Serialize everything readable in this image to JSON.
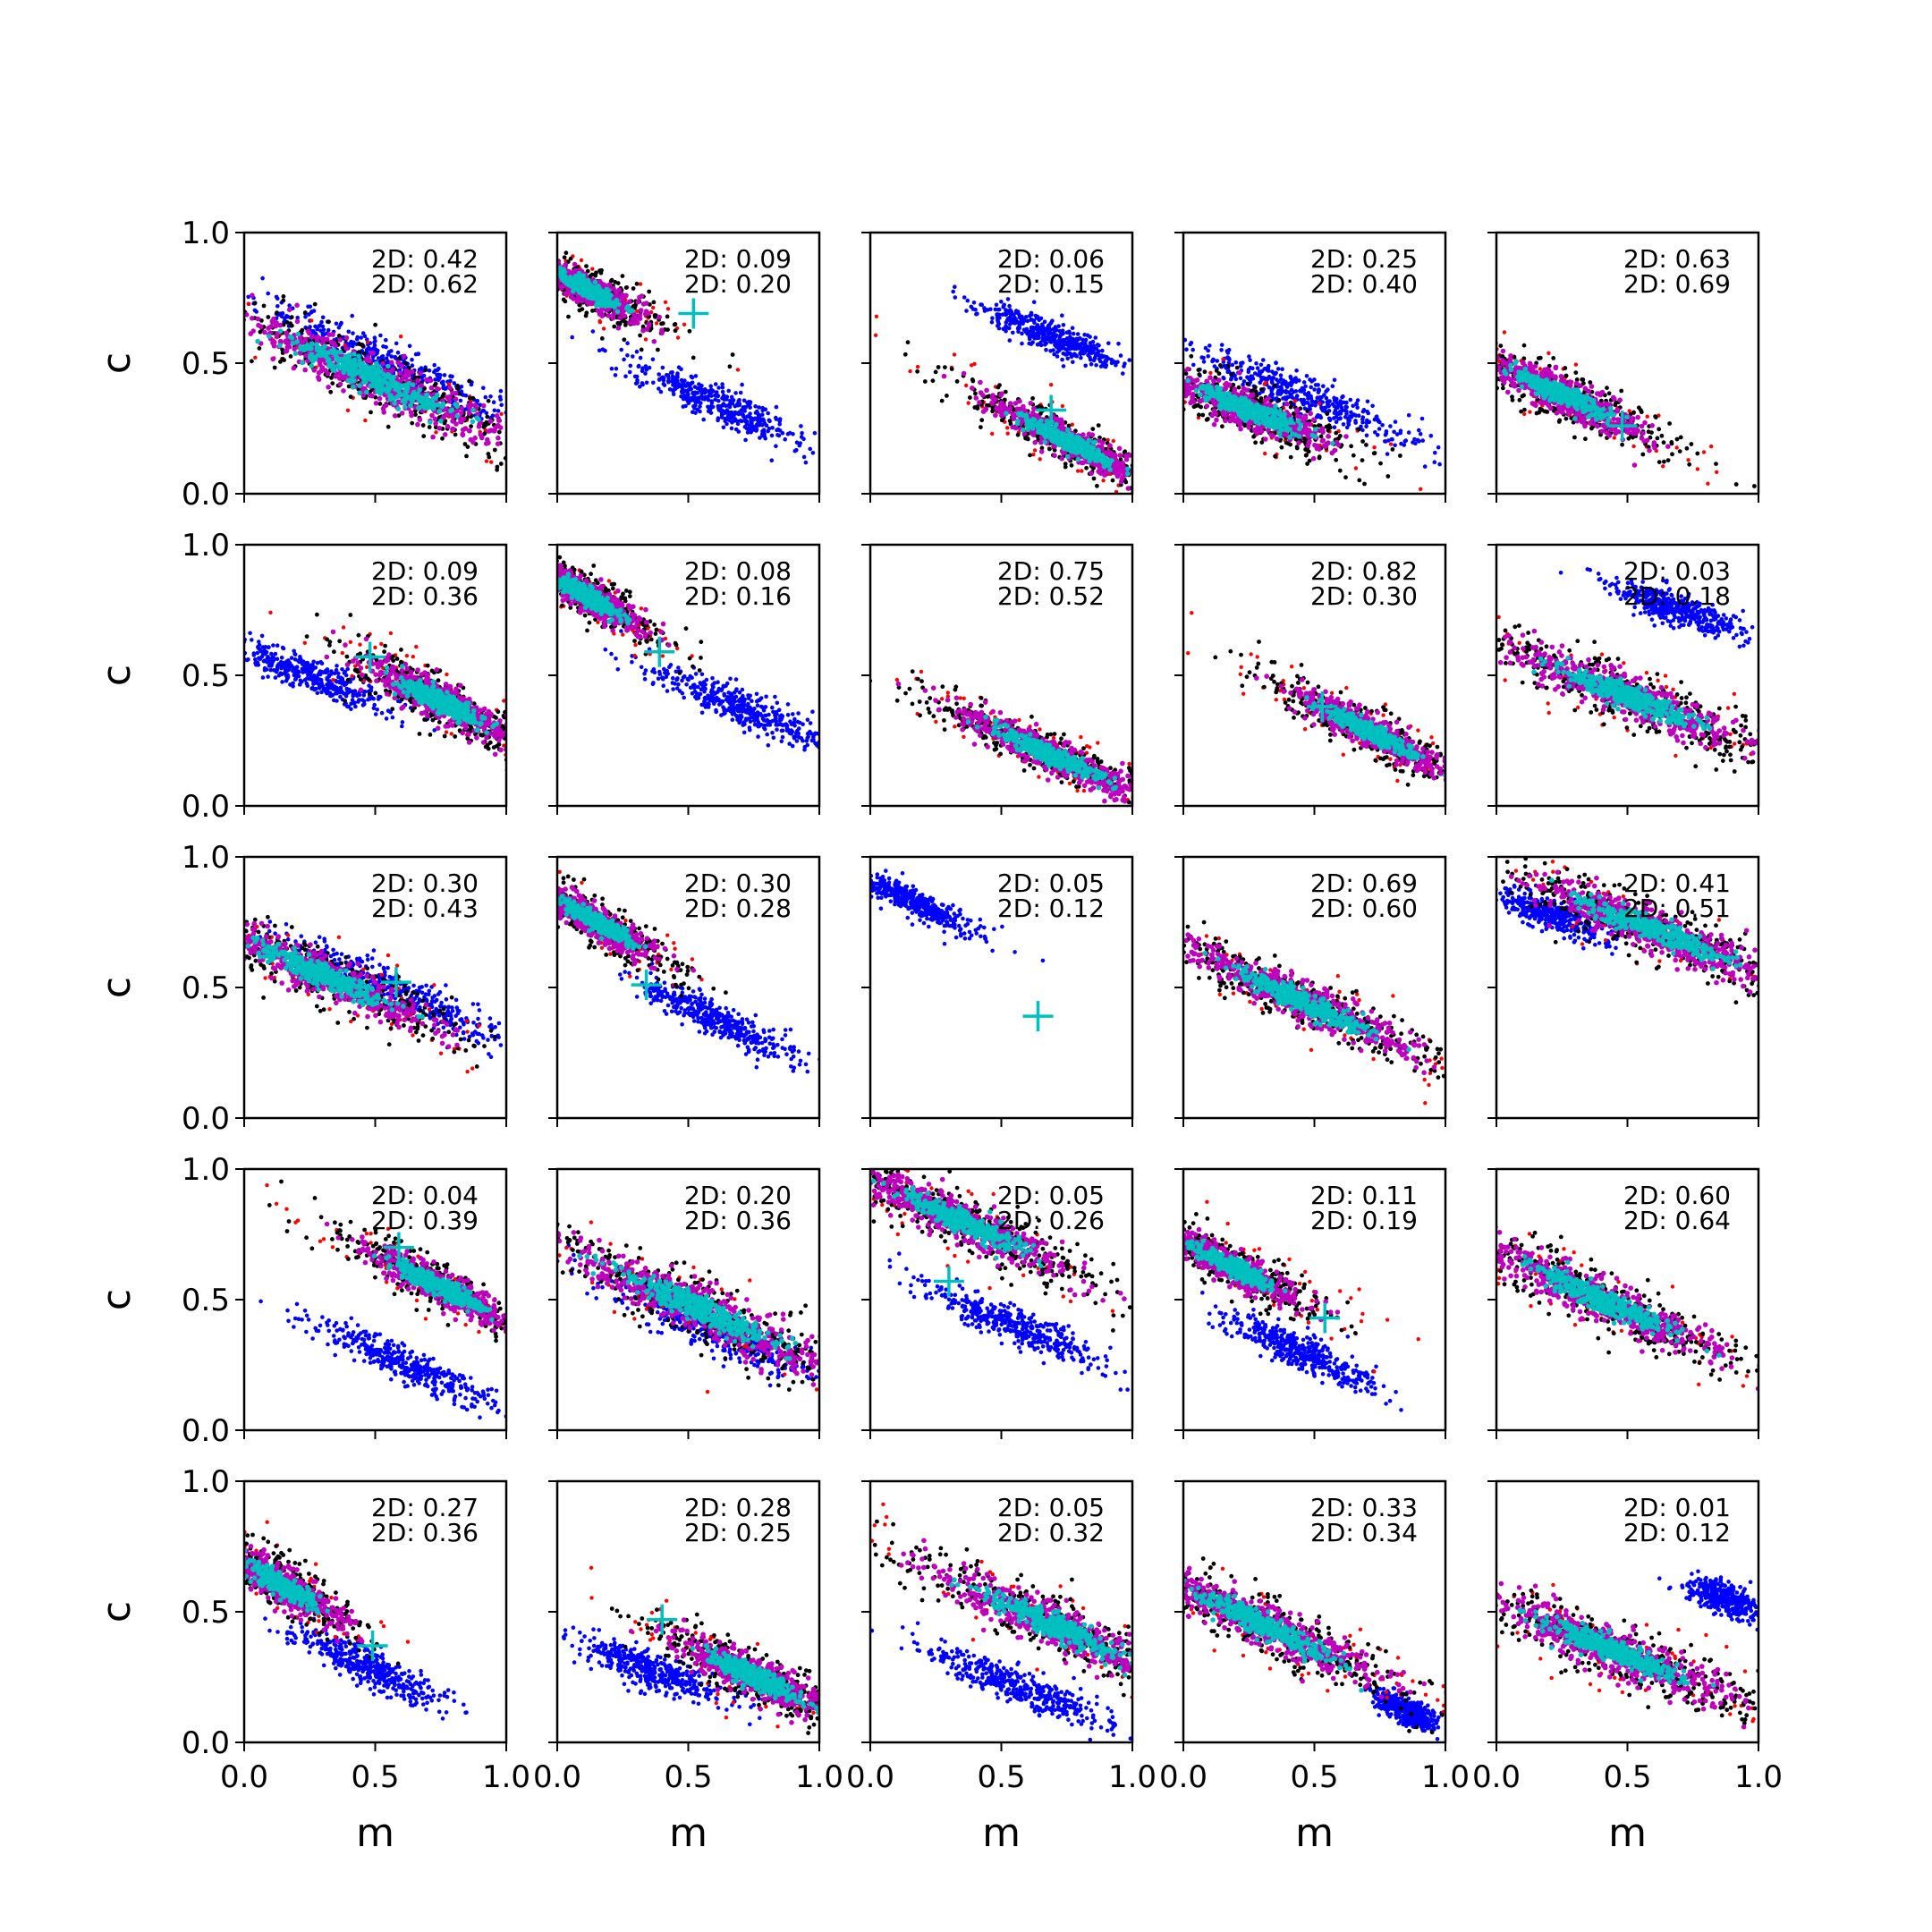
{
  "figure": {
    "xlabel": "m",
    "ylabel": "c",
    "grid": false,
    "colors": {
      "outer_samples": "#ff0000",
      "mid_samples": "#000000",
      "inner_samples": "#bf00bf",
      "core_samples": "#00bfbf",
      "alt_samples": "#0000ff",
      "marker": "#00bfbf"
    }
  },
  "chart_data": [
    {
      "type": "scatter",
      "panel": [
        1,
        1
      ],
      "xlim": [
        0,
        1
      ],
      "ylim": [
        0,
        1
      ],
      "xticks": [
        "",
        "",
        ""
      ],
      "yticks": [
        "0.0",
        "0.5",
        "1.0"
      ],
      "ylabel": "c",
      "xlabel": "",
      "annotations": [
        "2D: 0.42",
        "2D: 0.62"
      ],
      "clusters": [
        {
          "cx": 0.5,
          "cy": 0.44,
          "slope": -0.45,
          "spread_x": 0.55,
          "spread_y": 0.09
        }
      ],
      "alt_cluster": {
        "cx": 0.55,
        "cy": 0.5,
        "slope": -0.45,
        "spread_x": 0.5,
        "spread_y": 0.08
      },
      "marker": null
    },
    {
      "type": "scatter",
      "panel": [
        1,
        2
      ],
      "xlim": [
        0,
        1
      ],
      "ylim": [
        0,
        1
      ],
      "xticks": [
        "",
        "",
        ""
      ],
      "yticks": [
        "",
        "",
        ""
      ],
      "ylabel": "",
      "xlabel": "",
      "annotations": [
        "2D: 0.09",
        "2D: 0.20"
      ],
      "clusters": [
        {
          "cx": 0.12,
          "cy": 0.78,
          "slope": -0.5,
          "spread_x": 0.2,
          "spread_y": 0.06
        }
      ],
      "alt_cluster": {
        "cx": 0.6,
        "cy": 0.35,
        "slope": -0.45,
        "spread_x": 0.35,
        "spread_y": 0.07
      },
      "marker": [
        0.52,
        0.69
      ]
    },
    {
      "type": "scatter",
      "panel": [
        1,
        3
      ],
      "xlim": [
        0,
        1
      ],
      "ylim": [
        0,
        1
      ],
      "xticks": [
        "",
        "",
        ""
      ],
      "yticks": [
        "",
        "",
        ""
      ],
      "ylabel": "",
      "xlabel": "",
      "annotations": [
        "2D: 0.06",
        "2D: 0.15"
      ],
      "clusters": [
        {
          "cx": 0.75,
          "cy": 0.2,
          "slope": -0.5,
          "spread_x": 0.3,
          "spread_y": 0.06
        }
      ],
      "alt_cluster": {
        "cx": 0.7,
        "cy": 0.6,
        "slope": -0.4,
        "spread_x": 0.28,
        "spread_y": 0.06
      },
      "marker": [
        0.69,
        0.32
      ]
    },
    {
      "type": "scatter",
      "panel": [
        1,
        4
      ],
      "xlim": [
        0,
        1
      ],
      "ylim": [
        0,
        1
      ],
      "xticks": [
        "",
        "",
        ""
      ],
      "yticks": [
        "",
        "",
        ""
      ],
      "ylabel": "",
      "xlabel": "",
      "annotations": [
        "2D: 0.25",
        "2D: 0.40"
      ],
      "clusters": [
        {
          "cx": 0.25,
          "cy": 0.32,
          "slope": -0.4,
          "spread_x": 0.3,
          "spread_y": 0.07
        }
      ],
      "alt_cluster": {
        "cx": 0.45,
        "cy": 0.38,
        "slope": -0.4,
        "spread_x": 0.45,
        "spread_y": 0.08
      },
      "marker": [
        0.37,
        0.27
      ]
    },
    {
      "type": "scatter",
      "panel": [
        1,
        5
      ],
      "xlim": [
        0,
        1
      ],
      "ylim": [
        0,
        1
      ],
      "xticks": [
        "",
        "",
        ""
      ],
      "yticks": [
        "",
        "",
        ""
      ],
      "ylabel": "",
      "xlabel": "",
      "annotations": [
        "2D: 0.63",
        "2D: 0.69"
      ],
      "clusters": [
        {
          "cx": 0.25,
          "cy": 0.38,
          "slope": -0.45,
          "spread_x": 0.3,
          "spread_y": 0.07
        }
      ],
      "alt_cluster": null,
      "marker": [
        0.48,
        0.26
      ]
    },
    {
      "type": "scatter",
      "panel": [
        2,
        1
      ],
      "xlim": [
        0,
        1
      ],
      "ylim": [
        0,
        1
      ],
      "xticks": [
        "",
        "",
        ""
      ],
      "yticks": [
        "0.0",
        "0.5",
        "1.0"
      ],
      "ylabel": "c",
      "xlabel": "",
      "annotations": [
        "2D: 0.09",
        "2D: 0.36"
      ],
      "clusters": [
        {
          "cx": 0.75,
          "cy": 0.4,
          "slope": -0.5,
          "spread_x": 0.28,
          "spread_y": 0.07
        }
      ],
      "alt_cluster": {
        "cx": 0.25,
        "cy": 0.5,
        "slope": -0.4,
        "spread_x": 0.3,
        "spread_y": 0.07
      },
      "marker": [
        0.48,
        0.57
      ]
    },
    {
      "type": "scatter",
      "panel": [
        2,
        2
      ],
      "xlim": [
        0,
        1
      ],
      "ylim": [
        0,
        1
      ],
      "xticks": [
        "",
        "",
        ""
      ],
      "yticks": [
        "",
        "",
        ""
      ],
      "ylabel": "",
      "xlabel": "",
      "annotations": [
        "2D: 0.08",
        "2D: 0.16"
      ],
      "clusters": [
        {
          "cx": 0.12,
          "cy": 0.8,
          "slope": -0.55,
          "spread_x": 0.2,
          "spread_y": 0.06
        }
      ],
      "alt_cluster": {
        "cx": 0.7,
        "cy": 0.38,
        "slope": -0.4,
        "spread_x": 0.35,
        "spread_y": 0.07
      },
      "marker": [
        0.39,
        0.59
      ]
    },
    {
      "type": "scatter",
      "panel": [
        2,
        3
      ],
      "xlim": [
        0,
        1
      ],
      "ylim": [
        0,
        1
      ],
      "xticks": [
        "",
        "",
        ""
      ],
      "yticks": [
        "",
        "",
        ""
      ],
      "ylabel": "",
      "xlabel": "",
      "annotations": [
        "2D: 0.75",
        "2D: 0.52"
      ],
      "clusters": [
        {
          "cx": 0.68,
          "cy": 0.2,
          "slope": -0.45,
          "spread_x": 0.35,
          "spread_y": 0.06
        }
      ],
      "alt_cluster": null,
      "marker": null
    },
    {
      "type": "scatter",
      "panel": [
        2,
        4
      ],
      "xlim": [
        0,
        1
      ],
      "ylim": [
        0,
        1
      ],
      "xticks": [
        "",
        "",
        ""
      ],
      "yticks": [
        "",
        "",
        ""
      ],
      "ylabel": "",
      "xlabel": "",
      "annotations": [
        "2D: 0.82",
        "2D: 0.30"
      ],
      "clusters": [
        {
          "cx": 0.72,
          "cy": 0.28,
          "slope": -0.5,
          "spread_x": 0.3,
          "spread_y": 0.06
        }
      ],
      "alt_cluster": null,
      "marker": [
        0.53,
        0.38
      ]
    },
    {
      "type": "scatter",
      "panel": [
        2,
        5
      ],
      "xlim": [
        0,
        1
      ],
      "ylim": [
        0,
        1
      ],
      "xticks": [
        "",
        "",
        ""
      ],
      "yticks": [
        "",
        "",
        ""
      ],
      "ylabel": "",
      "xlabel": "",
      "annotations": [
        "2D: 0.03",
        "2D: 0.18"
      ],
      "clusters": [
        {
          "cx": 0.5,
          "cy": 0.42,
          "slope": -0.4,
          "spread_x": 0.45,
          "spread_y": 0.08
        }
      ],
      "alt_cluster": {
        "cx": 0.7,
        "cy": 0.75,
        "slope": -0.35,
        "spread_x": 0.25,
        "spread_y": 0.06
      },
      "marker": null
    },
    {
      "type": "scatter",
      "panel": [
        3,
        1
      ],
      "xlim": [
        0,
        1
      ],
      "ylim": [
        0,
        1
      ],
      "xticks": [
        "",
        "",
        ""
      ],
      "yticks": [
        "0.0",
        "0.5",
        "1.0"
      ],
      "ylabel": "c",
      "xlabel": "",
      "annotations": [
        "2D: 0.30",
        "2D: 0.43"
      ],
      "clusters": [
        {
          "cx": 0.3,
          "cy": 0.55,
          "slope": -0.45,
          "spread_x": 0.4,
          "spread_y": 0.08
        }
      ],
      "alt_cluster": {
        "cx": 0.55,
        "cy": 0.5,
        "slope": -0.45,
        "spread_x": 0.45,
        "spread_y": 0.08
      },
      "marker": [
        0.58,
        0.52
      ]
    },
    {
      "type": "scatter",
      "panel": [
        3,
        2
      ],
      "xlim": [
        0,
        1
      ],
      "ylim": [
        0,
        1
      ],
      "xticks": [
        "",
        "",
        ""
      ],
      "yticks": [
        "",
        "",
        ""
      ],
      "ylabel": "",
      "xlabel": "",
      "annotations": [
        "2D: 0.30",
        "2D: 0.28"
      ],
      "clusters": [
        {
          "cx": 0.15,
          "cy": 0.75,
          "slope": -0.55,
          "spread_x": 0.22,
          "spread_y": 0.06
        }
      ],
      "alt_cluster": {
        "cx": 0.6,
        "cy": 0.38,
        "slope": -0.45,
        "spread_x": 0.3,
        "spread_y": 0.07
      },
      "marker": [
        0.34,
        0.51
      ]
    },
    {
      "type": "scatter",
      "panel": [
        3,
        3
      ],
      "xlim": [
        0,
        1
      ],
      "ylim": [
        0,
        1
      ],
      "xticks": [
        "",
        "",
        ""
      ],
      "yticks": [
        "",
        "",
        ""
      ],
      "ylabel": "",
      "xlabel": "",
      "annotations": [
        "2D: 0.05",
        "2D: 0.12"
      ],
      "clusters": [],
      "alt_cluster": {
        "cx": 0.18,
        "cy": 0.82,
        "slope": -0.45,
        "spread_x": 0.22,
        "spread_y": 0.05
      },
      "marker": [
        0.64,
        0.39
      ]
    },
    {
      "type": "scatter",
      "panel": [
        3,
        4
      ],
      "xlim": [
        0,
        1
      ],
      "ylim": [
        0,
        1
      ],
      "xticks": [
        "",
        "",
        ""
      ],
      "yticks": [
        "",
        "",
        ""
      ],
      "ylabel": "",
      "xlabel": "",
      "annotations": [
        "2D: 0.69",
        "2D: 0.60"
      ],
      "clusters": [
        {
          "cx": 0.45,
          "cy": 0.45,
          "slope": -0.45,
          "spread_x": 0.45,
          "spread_y": 0.07
        }
      ],
      "alt_cluster": null,
      "marker": null
    },
    {
      "type": "scatter",
      "panel": [
        3,
        5
      ],
      "xlim": [
        0,
        1
      ],
      "ylim": [
        0,
        1
      ],
      "xticks": [
        "",
        "",
        ""
      ],
      "yticks": [
        "",
        "",
        ""
      ],
      "ylabel": "",
      "xlabel": "",
      "annotations": [
        "2D: 0.41",
        "2D: 0.51"
      ],
      "clusters": [
        {
          "cx": 0.6,
          "cy": 0.72,
          "slope": -0.4,
          "spread_x": 0.45,
          "spread_y": 0.08
        }
      ],
      "alt_cluster": {
        "cx": 0.2,
        "cy": 0.78,
        "slope": -0.35,
        "spread_x": 0.22,
        "spread_y": 0.06
      },
      "marker": null
    },
    {
      "type": "scatter",
      "panel": [
        4,
        1
      ],
      "xlim": [
        0,
        1
      ],
      "ylim": [
        0,
        1
      ],
      "xticks": [
        "",
        "",
        ""
      ],
      "yticks": [
        "0.0",
        "0.5",
        "1.0"
      ],
      "ylabel": "c",
      "xlabel": "",
      "annotations": [
        "2D: 0.04",
        "2D: 0.39"
      ],
      "clusters": [
        {
          "cx": 0.75,
          "cy": 0.55,
          "slope": -0.5,
          "spread_x": 0.3,
          "spread_y": 0.06
        }
      ],
      "alt_cluster": {
        "cx": 0.62,
        "cy": 0.25,
        "slope": -0.45,
        "spread_x": 0.35,
        "spread_y": 0.06
      },
      "marker": [
        0.59,
        0.7
      ]
    },
    {
      "type": "scatter",
      "panel": [
        4,
        2
      ],
      "xlim": [
        0,
        1
      ],
      "ylim": [
        0,
        1
      ],
      "xticks": [
        "",
        "",
        ""
      ],
      "yticks": [
        "",
        "",
        ""
      ],
      "ylabel": "",
      "xlabel": "",
      "annotations": [
        "2D: 0.20",
        "2D: 0.36"
      ],
      "clusters": [
        {
          "cx": 0.55,
          "cy": 0.46,
          "slope": -0.45,
          "spread_x": 0.5,
          "spread_y": 0.09
        }
      ],
      "alt_cluster": {
        "cx": 0.6,
        "cy": 0.38,
        "slope": -0.45,
        "spread_x": 0.45,
        "spread_y": 0.08
      },
      "marker": null
    },
    {
      "type": "scatter",
      "panel": [
        4,
        3
      ],
      "xlim": [
        0,
        1
      ],
      "ylim": [
        0,
        1
      ],
      "xticks": [
        "",
        "",
        ""
      ],
      "yticks": [
        "",
        "",
        ""
      ],
      "ylabel": "",
      "xlabel": "",
      "annotations": [
        "2D: 0.05",
        "2D: 0.26"
      ],
      "clusters": [
        {
          "cx": 0.35,
          "cy": 0.8,
          "slope": -0.45,
          "spread_x": 0.4,
          "spread_y": 0.08
        }
      ],
      "alt_cluster": {
        "cx": 0.55,
        "cy": 0.4,
        "slope": -0.4,
        "spread_x": 0.35,
        "spread_y": 0.07
      },
      "marker": [
        0.3,
        0.57
      ]
    },
    {
      "type": "scatter",
      "panel": [
        4,
        4
      ],
      "xlim": [
        0,
        1
      ],
      "ylim": [
        0,
        1
      ],
      "xticks": [
        "",
        "",
        ""
      ],
      "yticks": [
        "",
        "",
        ""
      ],
      "ylabel": "",
      "xlabel": "",
      "annotations": [
        "2D: 0.11",
        "2D: 0.19"
      ],
      "clusters": [
        {
          "cx": 0.2,
          "cy": 0.62,
          "slope": -0.5,
          "spread_x": 0.25,
          "spread_y": 0.06
        }
      ],
      "alt_cluster": {
        "cx": 0.45,
        "cy": 0.3,
        "slope": -0.45,
        "spread_x": 0.3,
        "spread_y": 0.07
      },
      "marker": [
        0.54,
        0.43
      ]
    },
    {
      "type": "scatter",
      "panel": [
        4,
        5
      ],
      "xlim": [
        0,
        1
      ],
      "ylim": [
        0,
        1
      ],
      "xticks": [
        "",
        "",
        ""
      ],
      "yticks": [
        "",
        "",
        ""
      ],
      "ylabel": "",
      "xlabel": "",
      "annotations": [
        "2D: 0.60",
        "2D: 0.64"
      ],
      "clusters": [
        {
          "cx": 0.4,
          "cy": 0.5,
          "slope": -0.45,
          "spread_x": 0.45,
          "spread_y": 0.08
        }
      ],
      "alt_cluster": null,
      "marker": null
    },
    {
      "type": "scatter",
      "panel": [
        5,
        1
      ],
      "xlim": [
        0,
        1
      ],
      "ylim": [
        0,
        1
      ],
      "xticks": [
        "0.0",
        "0.5",
        "1.0"
      ],
      "yticks": [
        "0.0",
        "0.5",
        "1.0"
      ],
      "ylabel": "c",
      "xlabel": "m",
      "annotations": [
        "2D: 0.27",
        "2D: 0.36"
      ],
      "clusters": [
        {
          "cx": 0.15,
          "cy": 0.6,
          "slope": -0.55,
          "spread_x": 0.22,
          "spread_y": 0.07
        }
      ],
      "alt_cluster": {
        "cx": 0.45,
        "cy": 0.3,
        "slope": -0.45,
        "spread_x": 0.28,
        "spread_y": 0.07
      },
      "marker": [
        0.49,
        0.37
      ]
    },
    {
      "type": "scatter",
      "panel": [
        5,
        2
      ],
      "xlim": [
        0,
        1
      ],
      "ylim": [
        0,
        1
      ],
      "xticks": [
        "0.0",
        "0.5",
        "1.0"
      ],
      "yticks": [
        "",
        "",
        ""
      ],
      "ylabel": "",
      "xlabel": "m",
      "annotations": [
        "2D: 0.28",
        "2D: 0.25"
      ],
      "clusters": [
        {
          "cx": 0.75,
          "cy": 0.25,
          "slope": -0.45,
          "spread_x": 0.3,
          "spread_y": 0.07
        }
      ],
      "alt_cluster": {
        "cx": 0.35,
        "cy": 0.28,
        "slope": -0.35,
        "spread_x": 0.3,
        "spread_y": 0.07
      },
      "marker": [
        0.4,
        0.47
      ]
    },
    {
      "type": "scatter",
      "panel": [
        5,
        3
      ],
      "xlim": [
        0,
        1
      ],
      "ylim": [
        0,
        1
      ],
      "xticks": [
        "0.0",
        "0.5",
        "1.0"
      ],
      "yticks": [
        "",
        "",
        ""
      ],
      "ylabel": "",
      "xlabel": "m",
      "annotations": [
        "2D: 0.05",
        "2D: 0.32"
      ],
      "clusters": [
        {
          "cx": 0.7,
          "cy": 0.45,
          "slope": -0.45,
          "spread_x": 0.45,
          "spread_y": 0.08
        }
      ],
      "alt_cluster": {
        "cx": 0.55,
        "cy": 0.22,
        "slope": -0.4,
        "spread_x": 0.35,
        "spread_y": 0.07
      },
      "marker": null
    },
    {
      "type": "scatter",
      "panel": [
        5,
        4
      ],
      "xlim": [
        0,
        1
      ],
      "ylim": [
        0,
        1
      ],
      "xticks": [
        "0.0",
        "0.5",
        "1.0"
      ],
      "yticks": [
        "",
        "",
        ""
      ],
      "ylabel": "",
      "xlabel": "m",
      "annotations": [
        "2D: 0.33",
        "2D: 0.34"
      ],
      "clusters": [
        {
          "cx": 0.3,
          "cy": 0.45,
          "slope": -0.45,
          "spread_x": 0.45,
          "spread_y": 0.08
        }
      ],
      "alt_cluster": {
        "cx": 0.85,
        "cy": 0.12,
        "slope": -0.4,
        "spread_x": 0.12,
        "spread_y": 0.05
      },
      "marker": null
    },
    {
      "type": "scatter",
      "panel": [
        5,
        5
      ],
      "xlim": [
        0,
        1
      ],
      "ylim": [
        0,
        1
      ],
      "xticks": [
        "0.0",
        "0.5",
        "1.0"
      ],
      "yticks": [
        "",
        "",
        ""
      ],
      "ylabel": "",
      "xlabel": "m",
      "annotations": [
        "2D: 0.01",
        "2D: 0.12"
      ],
      "clusters": [
        {
          "cx": 0.45,
          "cy": 0.35,
          "slope": -0.4,
          "spread_x": 0.45,
          "spread_y": 0.08
        }
      ],
      "alt_cluster": {
        "cx": 0.88,
        "cy": 0.55,
        "slope": -0.3,
        "spread_x": 0.14,
        "spread_y": 0.06
      },
      "marker": null
    }
  ]
}
